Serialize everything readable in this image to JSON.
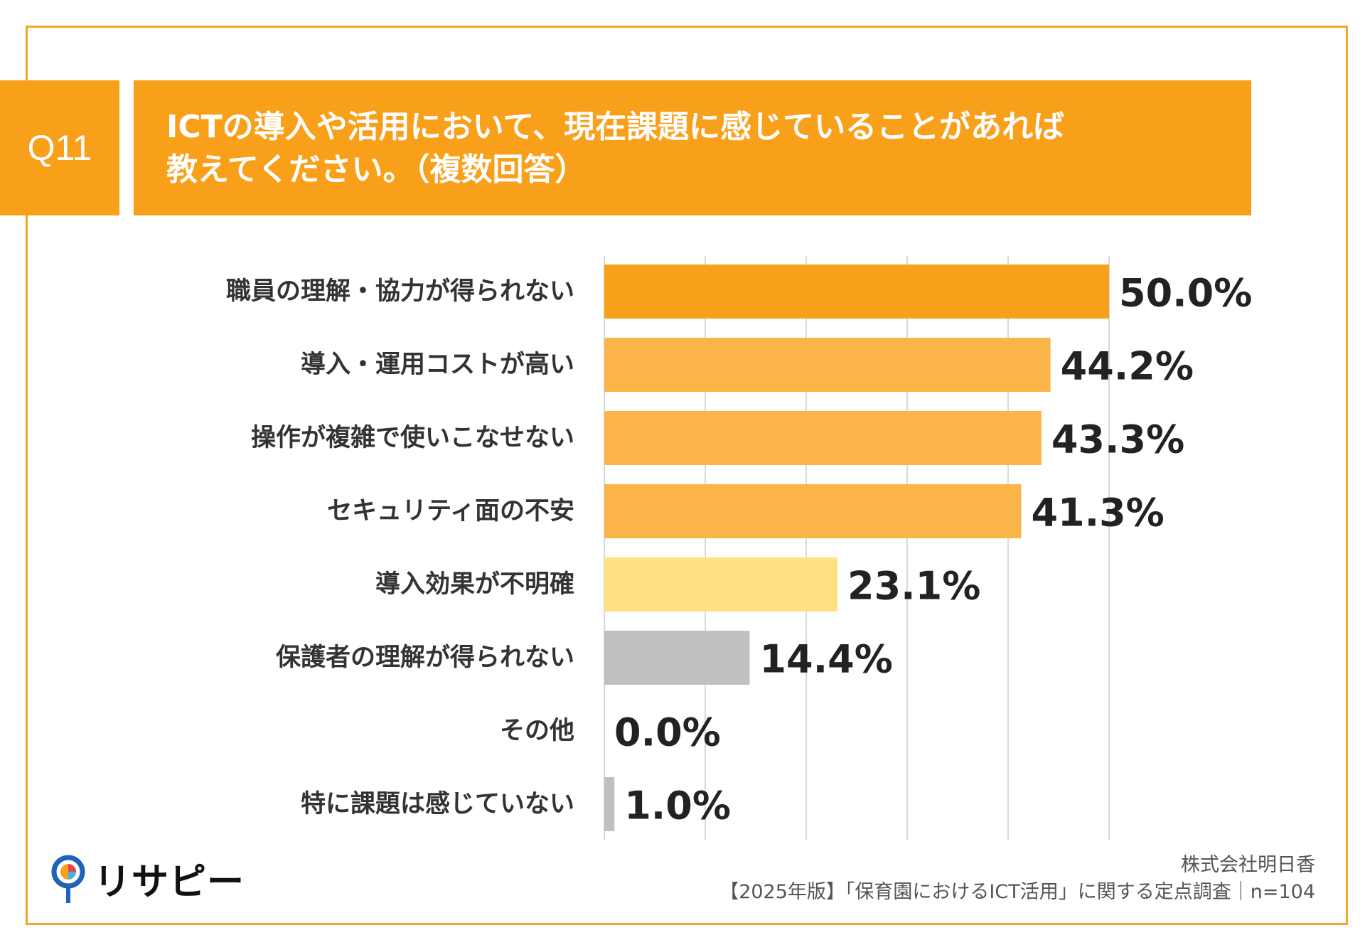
{
  "question": {
    "number": "Q11",
    "title_line1": "ICTの導入や活用において、現在課題に感じていることがあれば",
    "title_line2": "教えてください。（複数回答）"
  },
  "chart_data": {
    "type": "bar",
    "orientation": "horizontal",
    "categories": [
      "職員の理解・協力が得られない",
      "導入・運用コストが高い",
      "操作が複雑で使いこなせない",
      "セキュリティ面の不安",
      "導入効果が不明確",
      "保護者の理解が得られない",
      "その他",
      "特に課題は感じていない"
    ],
    "values": [
      50.0,
      44.2,
      43.3,
      41.3,
      23.1,
      14.4,
      0.0,
      1.0
    ],
    "value_labels": [
      "50.0%",
      "44.2%",
      "43.3%",
      "41.3%",
      "23.1%",
      "14.4%",
      "0.0%",
      "1.0%"
    ],
    "colors": [
      "#F9A01B",
      "#FBB447",
      "#FBB447",
      "#FBB447",
      "#FDE182",
      "#C0C0C0",
      "#C0C0C0",
      "#C0C0C0"
    ],
    "xlim": [
      0,
      50
    ],
    "gridlines": [
      0,
      10,
      20,
      30,
      40,
      50
    ],
    "grid": true,
    "unit": "%"
  },
  "footer": {
    "logo_text": "リサピー",
    "company": "株式会社明日香",
    "survey": "【2025年版】「保育園におけるICT活用」に関する定点調査｜n=104"
  },
  "colors": {
    "accent": "#F9A01B",
    "frame": "#F5A623"
  }
}
